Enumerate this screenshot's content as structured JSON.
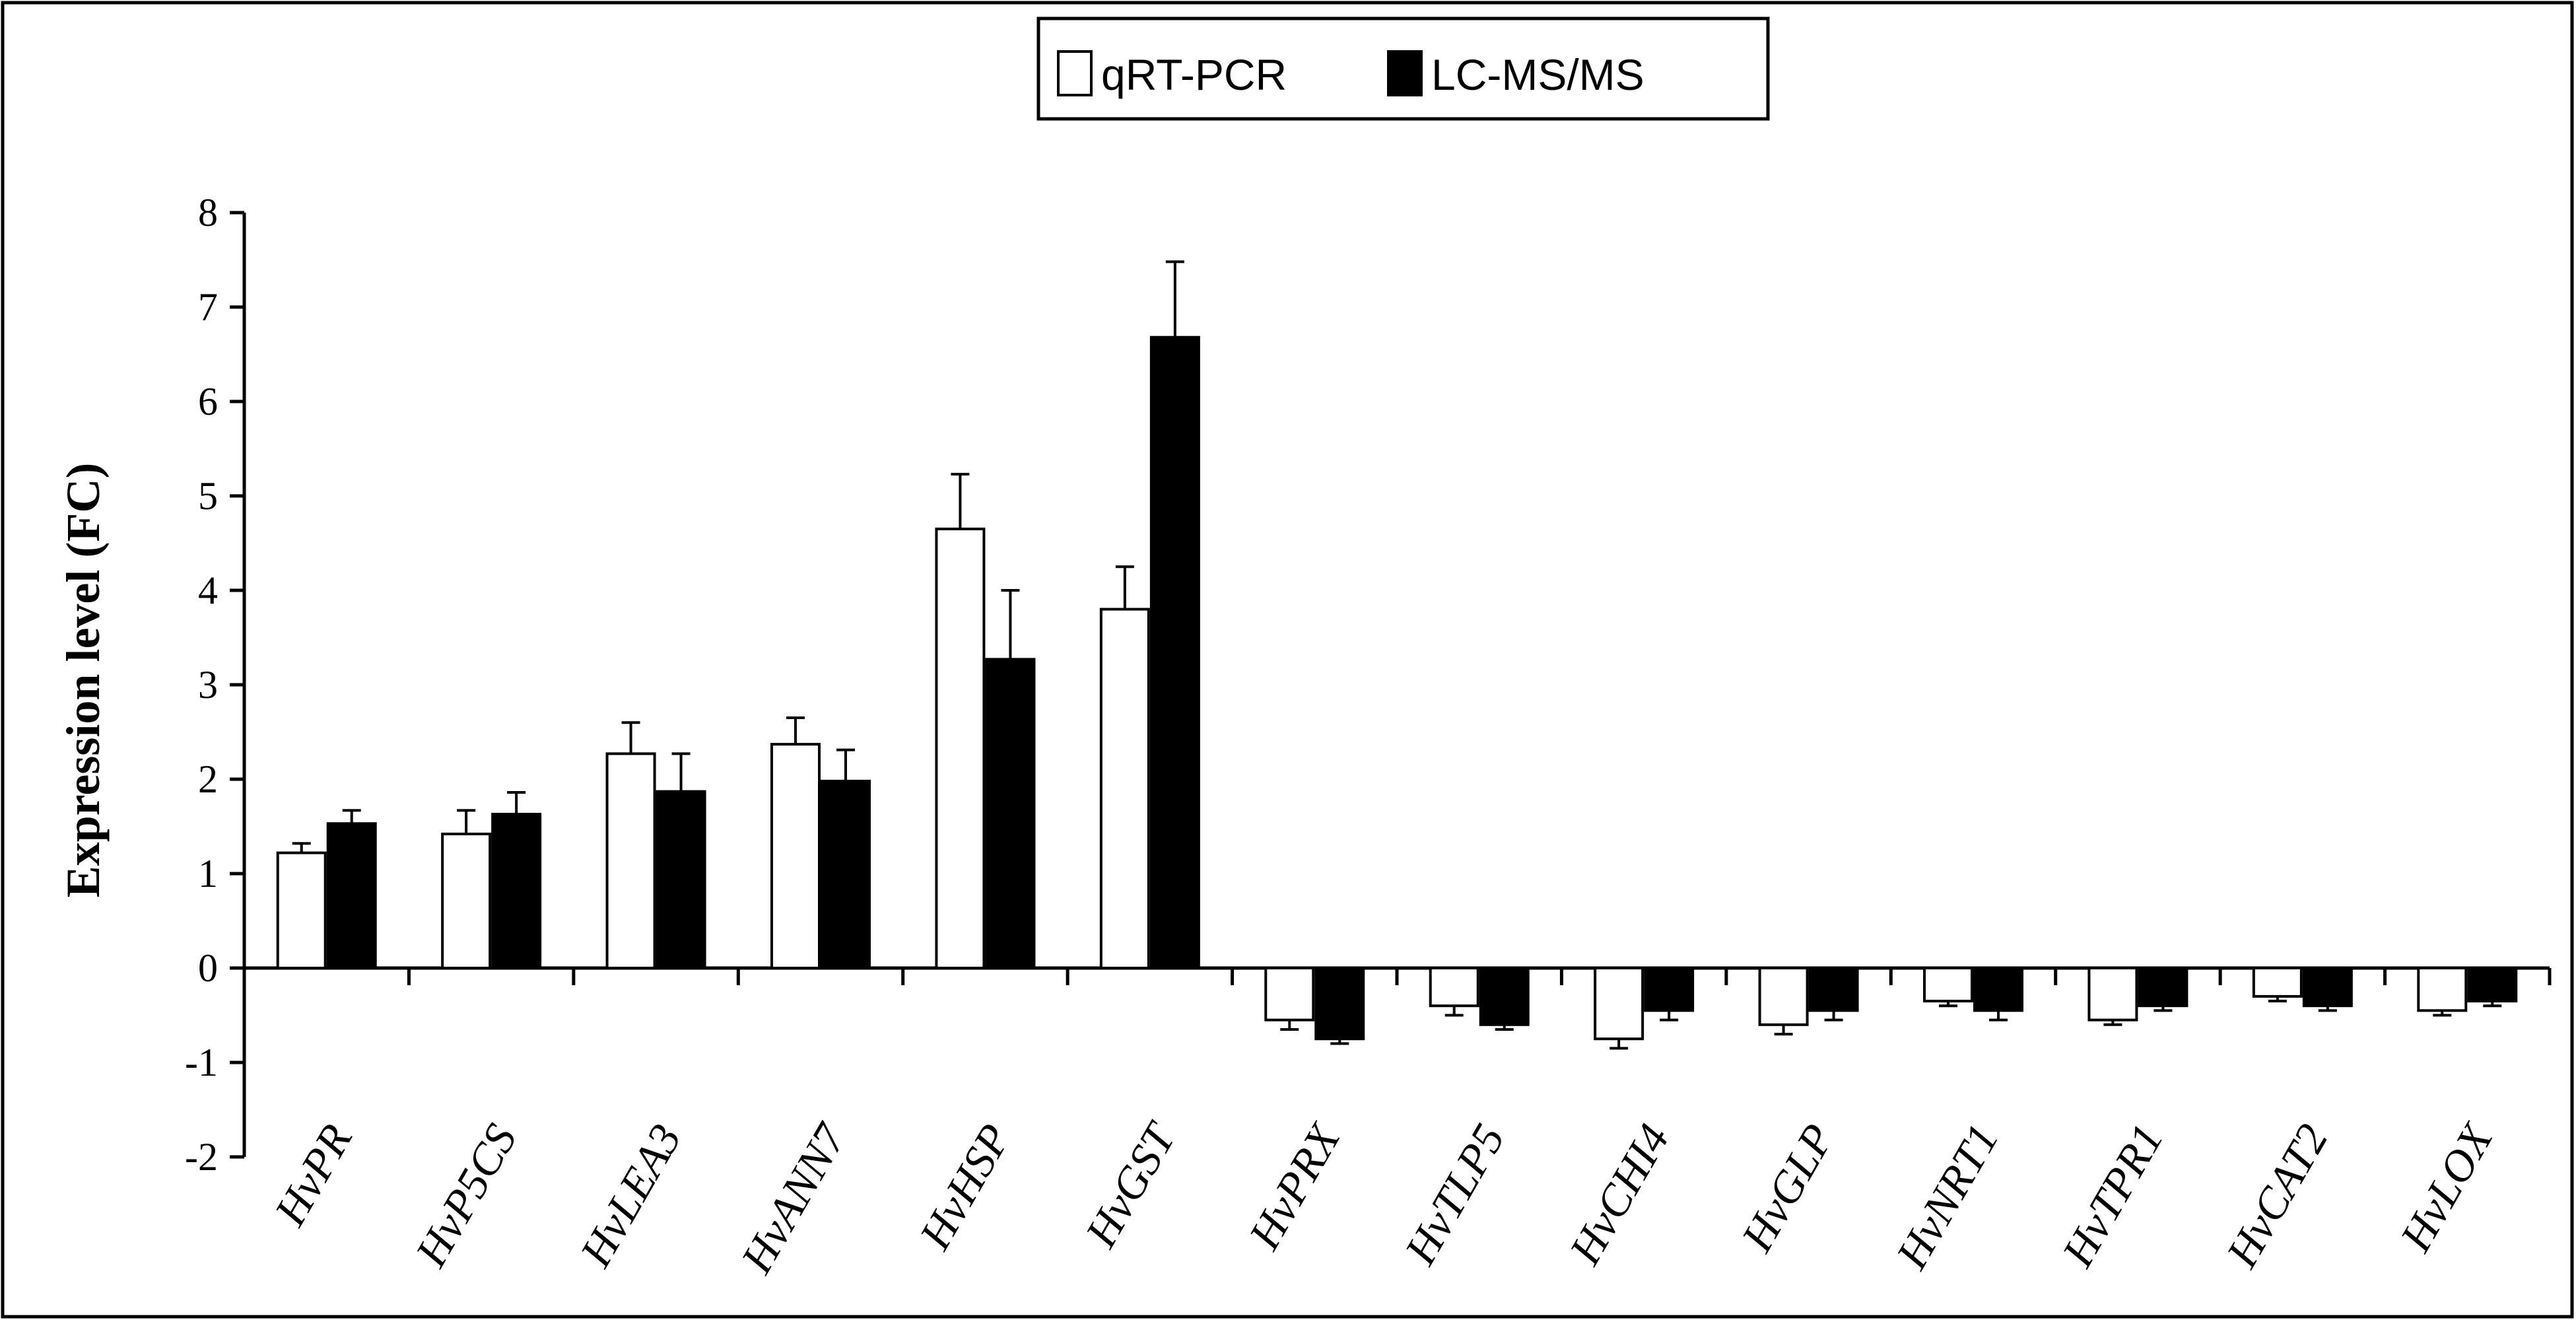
{
  "chart_data": {
    "type": "bar",
    "ylabel": "Expression level (FC)",
    "xlabel": "",
    "ylim": [
      -2,
      8
    ],
    "yticks": [
      8,
      7,
      6,
      5,
      4,
      3,
      2,
      1,
      0,
      -1,
      -2
    ],
    "grid": false,
    "legend_position": "top-center",
    "categories": [
      "HvPR",
      "HvP5CS",
      "HvLEA3",
      "HvANN7",
      "HvHSP",
      "HvGST",
      "HvPRX",
      "HvTLP5",
      "HvCHI4",
      "HvGLP",
      "HvNRT1",
      "HvTPR1",
      "HvCAT2",
      "HvLOX"
    ],
    "series": [
      {
        "name": "qRT-PCR",
        "color": "#ffffff",
        "values": [
          1.22,
          1.42,
          2.27,
          2.37,
          4.65,
          3.8,
          -0.55,
          -0.4,
          -0.75,
          -0.6,
          -0.35,
          -0.55,
          -0.3,
          -0.45
        ],
        "errors": [
          0.1,
          0.25,
          0.33,
          0.28,
          0.58,
          0.45,
          0.1,
          0.1,
          0.1,
          0.1,
          0.05,
          0.05,
          0.05,
          0.05
        ]
      },
      {
        "name": "LC-MS/MS",
        "color": "#000000",
        "values": [
          1.53,
          1.63,
          1.87,
          1.98,
          3.27,
          6.68,
          -0.75,
          -0.6,
          -0.45,
          -0.45,
          -0.45,
          -0.4,
          -0.4,
          -0.35
        ],
        "errors": [
          0.14,
          0.23,
          0.4,
          0.33,
          0.73,
          0.8,
          0.05,
          0.05,
          0.1,
          0.1,
          0.1,
          0.05,
          0.05,
          0.05
        ]
      }
    ]
  }
}
